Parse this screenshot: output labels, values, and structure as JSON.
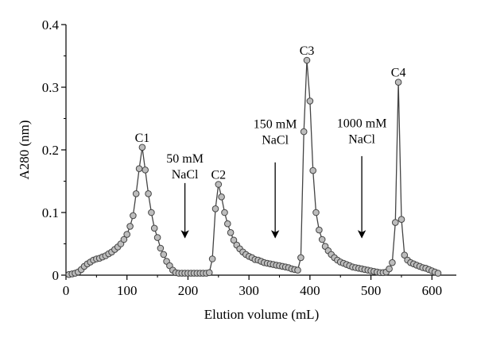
{
  "chart_data": {
    "type": "scatter",
    "xlabel": "Elution volume (mL)",
    "ylabel": "A280 (nm)",
    "xlim": [
      0,
      640
    ],
    "ylim": [
      0,
      0.4
    ],
    "x_ticks": [
      "0",
      "100",
      "200",
      "300",
      "400",
      "500",
      "600"
    ],
    "y_ticks": [
      "0",
      "0.1",
      "0.2",
      "0.3",
      "0.4"
    ],
    "grid": false,
    "legend": "none",
    "marker_color": "#bdbdbd",
    "line_color": "#444444",
    "series": [
      {
        "points": [
          [
            5,
            0.001
          ],
          [
            10,
            0.002
          ],
          [
            15,
            0.003
          ],
          [
            20,
            0.005
          ],
          [
            25,
            0.009
          ],
          [
            30,
            0.014
          ],
          [
            35,
            0.018
          ],
          [
            40,
            0.021
          ],
          [
            45,
            0.024
          ],
          [
            50,
            0.026
          ],
          [
            55,
            0.027
          ],
          [
            60,
            0.029
          ],
          [
            65,
            0.031
          ],
          [
            70,
            0.034
          ],
          [
            75,
            0.037
          ],
          [
            80,
            0.041
          ],
          [
            85,
            0.045
          ],
          [
            90,
            0.05
          ],
          [
            95,
            0.057
          ],
          [
            100,
            0.065
          ],
          [
            105,
            0.078
          ],
          [
            110,
            0.095
          ],
          [
            115,
            0.13
          ],
          [
            120,
            0.17
          ],
          [
            125,
            0.204
          ],
          [
            130,
            0.168
          ],
          [
            135,
            0.13
          ],
          [
            140,
            0.1
          ],
          [
            145,
            0.075
          ],
          [
            150,
            0.06
          ],
          [
            155,
            0.043
          ],
          [
            160,
            0.033
          ],
          [
            165,
            0.022
          ],
          [
            170,
            0.015
          ],
          [
            175,
            0.008
          ],
          [
            180,
            0.004
          ],
          [
            185,
            0.003
          ],
          [
            190,
            0.003
          ],
          [
            195,
            0.003
          ],
          [
            200,
            0.003
          ],
          [
            205,
            0.003
          ],
          [
            210,
            0.003
          ],
          [
            215,
            0.003
          ],
          [
            220,
            0.003
          ],
          [
            225,
            0.003
          ],
          [
            230,
            0.003
          ],
          [
            235,
            0.004
          ],
          [
            240,
            0.026
          ],
          [
            245,
            0.106
          ],
          [
            250,
            0.145
          ],
          [
            255,
            0.125
          ],
          [
            260,
            0.1
          ],
          [
            265,
            0.082
          ],
          [
            270,
            0.068
          ],
          [
            275,
            0.056
          ],
          [
            280,
            0.048
          ],
          [
            285,
            0.042
          ],
          [
            290,
            0.037
          ],
          [
            295,
            0.033
          ],
          [
            300,
            0.03
          ],
          [
            305,
            0.028
          ],
          [
            310,
            0.025
          ],
          [
            315,
            0.024
          ],
          [
            320,
            0.022
          ],
          [
            325,
            0.02
          ],
          [
            330,
            0.019
          ],
          [
            335,
            0.018
          ],
          [
            340,
            0.017
          ],
          [
            345,
            0.016
          ],
          [
            350,
            0.015
          ],
          [
            355,
            0.014
          ],
          [
            360,
            0.013
          ],
          [
            365,
            0.012
          ],
          [
            370,
            0.01
          ],
          [
            375,
            0.009
          ],
          [
            380,
            0.008
          ],
          [
            385,
            0.028
          ],
          [
            390,
            0.229
          ],
          [
            395,
            0.343
          ],
          [
            400,
            0.278
          ],
          [
            405,
            0.167
          ],
          [
            410,
            0.1
          ],
          [
            415,
            0.072
          ],
          [
            420,
            0.057
          ],
          [
            425,
            0.046
          ],
          [
            430,
            0.039
          ],
          [
            435,
            0.033
          ],
          [
            440,
            0.028
          ],
          [
            445,
            0.024
          ],
          [
            450,
            0.021
          ],
          [
            455,
            0.019
          ],
          [
            460,
            0.017
          ],
          [
            465,
            0.015
          ],
          [
            470,
            0.013
          ],
          [
            475,
            0.012
          ],
          [
            480,
            0.011
          ],
          [
            485,
            0.01
          ],
          [
            490,
            0.009
          ],
          [
            495,
            0.008
          ],
          [
            500,
            0.007
          ],
          [
            505,
            0.006
          ],
          [
            510,
            0.005
          ],
          [
            515,
            0.004
          ],
          [
            520,
            0.004
          ],
          [
            525,
            0.005
          ],
          [
            530,
            0.01
          ],
          [
            535,
            0.02
          ],
          [
            540,
            0.084
          ],
          [
            545,
            0.308
          ],
          [
            550,
            0.089
          ],
          [
            555,
            0.032
          ],
          [
            560,
            0.024
          ],
          [
            565,
            0.02
          ],
          [
            570,
            0.018
          ],
          [
            575,
            0.016
          ],
          [
            580,
            0.014
          ],
          [
            585,
            0.012
          ],
          [
            590,
            0.011
          ],
          [
            595,
            0.009
          ],
          [
            600,
            0.007
          ],
          [
            605,
            0.005
          ],
          [
            610,
            0.003
          ]
        ]
      }
    ],
    "peak_labels": [
      {
        "text": "C1",
        "x": 125,
        "y": 0.204
      },
      {
        "text": "C2",
        "x": 250,
        "y": 0.145
      },
      {
        "text": "C3",
        "x": 395,
        "y": 0.343
      },
      {
        "text": "C4",
        "x": 545,
        "y": 0.308
      }
    ],
    "salt_annotations": [
      {
        "line1": "50 mM",
        "line2": "NaCl",
        "x": 195,
        "y_top": 0.18,
        "arrow_from": 0.147,
        "arrow_to": 0.06
      },
      {
        "line1": "150 mM",
        "line2": "NaCl",
        "x": 343,
        "y_top": 0.235,
        "arrow_from": 0.18,
        "arrow_to": 0.06
      },
      {
        "line1": "1000 mM",
        "line2": "NaCl",
        "x": 485,
        "y_top": 0.236,
        "arrow_from": 0.19,
        "arrow_to": 0.06
      }
    ]
  }
}
